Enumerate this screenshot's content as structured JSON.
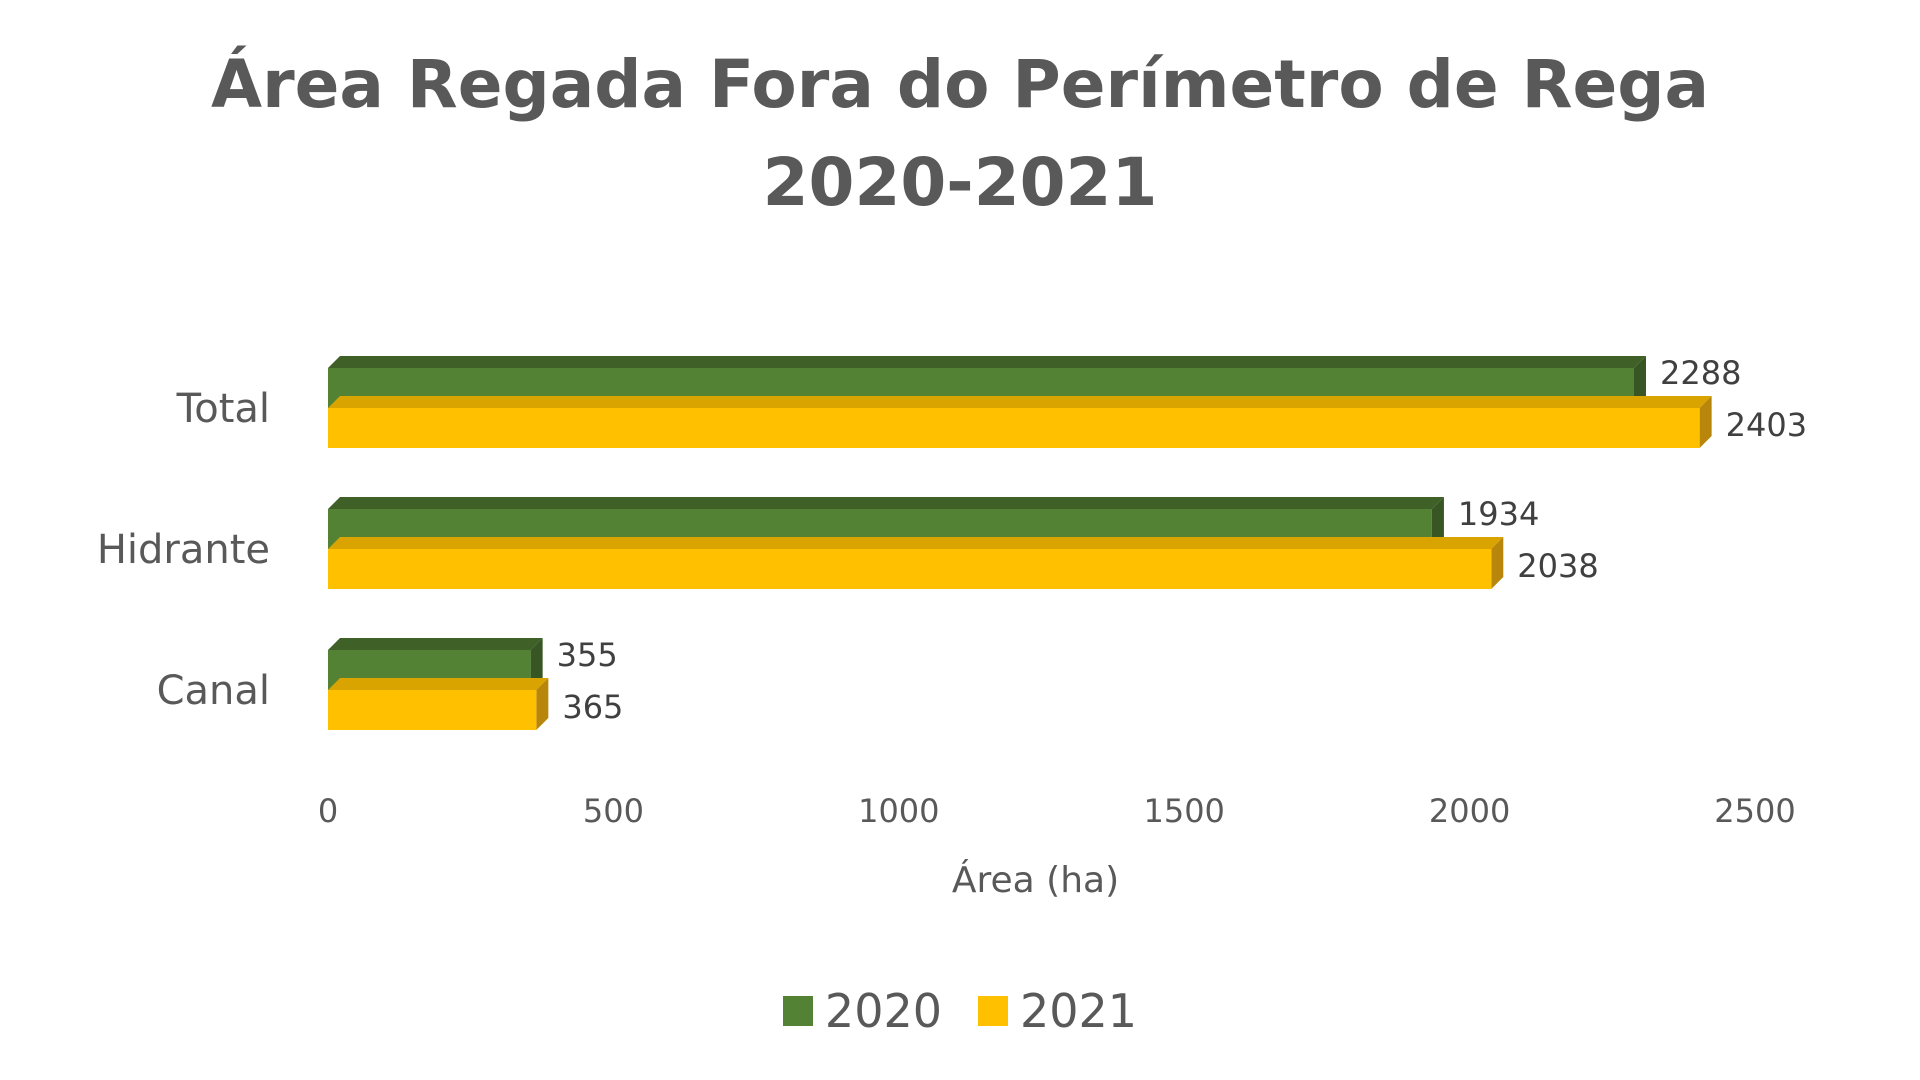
{
  "chart_data": {
    "type": "bar",
    "orientation": "horizontal",
    "style": "3d",
    "title": [
      "Área Regada Fora do Perímetro de Rega",
      "2020-2021"
    ],
    "categories": [
      "Canal",
      "Hidrante",
      "Total"
    ],
    "series": [
      {
        "name": "2020",
        "values": [
          355,
          1934,
          2288
        ],
        "color": "#548235",
        "side_color": "#375623",
        "top_color": "#3f6128"
      },
      {
        "name": "2021",
        "values": [
          365,
          2038,
          2403
        ],
        "color": "#ffc000",
        "side_color": "#b8860b",
        "top_color": "#d9a300"
      }
    ],
    "xlabel": "Área (ha)",
    "ylabel": "",
    "xlim": [
      0,
      2500
    ],
    "xticks": [
      "0",
      "500",
      "1000",
      "1500",
      "2000",
      "2500"
    ],
    "grid": false,
    "legend_position": "bottom"
  }
}
